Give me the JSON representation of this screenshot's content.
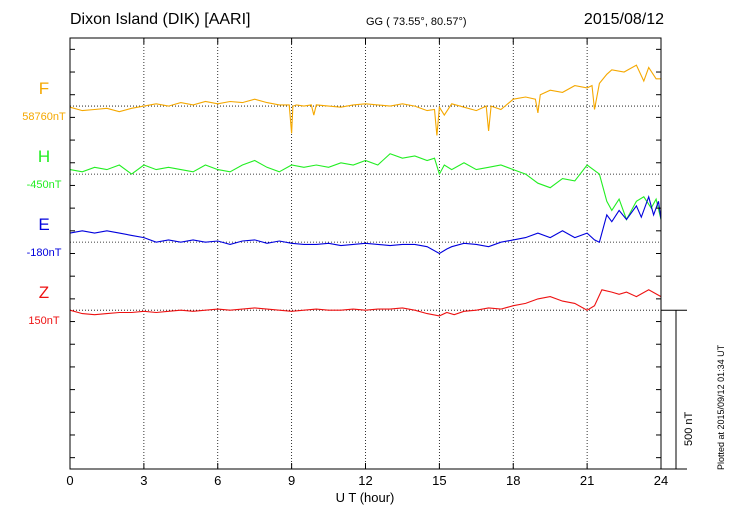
{
  "header": {
    "station": "Dixon Island (DIK)  [AARI]",
    "coords": "GG ( 73.55°,  80.57°)",
    "date": "2015/08/12"
  },
  "footer": {
    "plotted": "Plotted at 2015/09/12 01:34 UT"
  },
  "scale_label": "500 nT",
  "chart_data": {
    "type": "line",
    "title": "Dixon Island (DIK)  [AARI]",
    "xlabel": "U T (hour)",
    "ylabel": "",
    "xlim": [
      0,
      24
    ],
    "xticks": [
      0,
      3,
      6,
      9,
      12,
      15,
      18,
      21,
      24
    ],
    "xtick_labels": [
      "0",
      "3",
      "6",
      "9",
      "12",
      "15",
      "18",
      "21",
      "24"
    ],
    "ylim_nT": [
      -750,
      1150
    ],
    "scale_bar_nT": 500,
    "grid": true,
    "series": [
      {
        "name": "F",
        "baseline_label": "58760nT",
        "color": "#f5a800",
        "offset_nT": 850,
        "x": [
          0,
          0.5,
          1,
          1.5,
          2,
          2.5,
          3,
          3.5,
          4,
          4.5,
          5,
          5.5,
          6,
          6.5,
          7,
          7.5,
          8,
          8.5,
          8.9,
          9.0,
          9.05,
          9.2,
          9.5,
          9.8,
          9.9,
          10.0,
          10.5,
          11,
          11.5,
          12,
          12.5,
          13,
          13.5,
          14,
          14.5,
          14.8,
          14.9,
          15.0,
          15.2,
          15.5,
          16,
          16.5,
          16.9,
          17.0,
          17.1,
          17.5,
          18,
          18.5,
          18.9,
          19.0,
          19.1,
          19.5,
          20,
          20.5,
          21,
          21.2,
          21.3,
          21.5,
          21.8,
          22,
          22.5,
          23,
          23.3,
          23.5,
          23.8,
          24
        ],
        "y": [
          -5,
          -20,
          -15,
          -10,
          -25,
          -10,
          0,
          10,
          0,
          15,
          5,
          20,
          10,
          20,
          15,
          30,
          15,
          5,
          5,
          -120,
          0,
          5,
          0,
          5,
          -40,
          5,
          0,
          -5,
          5,
          10,
          5,
          0,
          10,
          0,
          -20,
          -15,
          -130,
          -5,
          -40,
          10,
          -5,
          -20,
          0,
          -110,
          0,
          -15,
          30,
          40,
          30,
          -30,
          50,
          70,
          60,
          90,
          80,
          90,
          -15,
          100,
          140,
          160,
          150,
          180,
          110,
          170,
          120,
          120
        ]
      },
      {
        "name": "H",
        "baseline_label": "-450nT",
        "color": "#22ee22",
        "offset_nT": 550,
        "x": [
          0,
          0.5,
          1,
          1.5,
          2,
          2.5,
          3,
          3.5,
          4,
          4.5,
          5,
          5.5,
          6,
          6.5,
          7,
          7.5,
          8,
          8.5,
          9,
          9.5,
          10,
          10.5,
          11,
          11.5,
          12,
          12.5,
          13,
          13.5,
          14,
          14.5,
          14.8,
          15,
          15.2,
          15.5,
          16,
          16.5,
          17,
          17.5,
          18,
          18.5,
          19,
          19.5,
          20,
          20.5,
          21,
          21.5,
          21.8,
          22,
          22.3,
          22.6,
          23,
          23.3,
          23.6,
          23.8,
          24
        ],
        "y": [
          20,
          10,
          30,
          20,
          40,
          0,
          40,
          20,
          30,
          20,
          10,
          40,
          20,
          10,
          40,
          60,
          30,
          10,
          40,
          30,
          40,
          30,
          50,
          40,
          60,
          40,
          90,
          70,
          80,
          60,
          70,
          0,
          40,
          20,
          50,
          20,
          30,
          40,
          20,
          0,
          -40,
          -60,
          -20,
          -30,
          40,
          0,
          -120,
          -160,
          -110,
          -200,
          -120,
          -100,
          -150,
          -110,
          -200
        ]
      },
      {
        "name": "E",
        "baseline_label": "-180nT",
        "color": "#0000dd",
        "offset_nT": 250,
        "x": [
          0,
          0.5,
          1,
          1.5,
          2,
          2.5,
          3,
          3.5,
          4,
          4.5,
          5,
          5.5,
          6,
          6.5,
          7,
          7.5,
          8,
          8.5,
          9,
          9.5,
          10,
          10.5,
          11,
          11.5,
          12,
          12.5,
          13,
          13.5,
          14,
          14.5,
          15,
          15.3,
          15.5,
          16,
          16.5,
          17,
          17.5,
          18,
          18.5,
          19,
          19.5,
          20,
          20.5,
          21,
          21.3,
          21.5,
          21.8,
          22,
          22.3,
          22.6,
          23,
          23.2,
          23.5,
          23.7,
          23.9,
          24
        ],
        "y": [
          40,
          50,
          40,
          50,
          40,
          30,
          20,
          0,
          10,
          0,
          10,
          0,
          5,
          -10,
          5,
          10,
          -5,
          5,
          -5,
          -10,
          -10,
          -5,
          -15,
          -10,
          -5,
          -10,
          -15,
          -10,
          -10,
          -20,
          -50,
          -30,
          -20,
          -5,
          -10,
          -20,
          0,
          10,
          20,
          40,
          20,
          50,
          20,
          40,
          10,
          0,
          120,
          90,
          140,
          100,
          160,
          110,
          200,
          120,
          180,
          100
        ]
      },
      {
        "name": "Z",
        "baseline_label": "150nT",
        "color": "#ee1111",
        "offset_nT": -50,
        "x": [
          0,
          0.5,
          1,
          1.5,
          2,
          2.5,
          3,
          3.5,
          4,
          4.5,
          5,
          5.5,
          6,
          6.5,
          7,
          7.5,
          8,
          8.5,
          9,
          9.5,
          10,
          10.5,
          11,
          11.5,
          12,
          12.5,
          13,
          13.5,
          14,
          14.5,
          15,
          15.3,
          15.6,
          16,
          16.5,
          17,
          17.5,
          18,
          18.5,
          19,
          19.5,
          20,
          20.5,
          21,
          21.3,
          21.6,
          22,
          22.3,
          22.6,
          23,
          23.5,
          24
        ],
        "y": [
          0,
          -15,
          -20,
          -15,
          -10,
          -10,
          -5,
          -10,
          -5,
          0,
          -5,
          0,
          5,
          0,
          5,
          10,
          5,
          0,
          -5,
          0,
          5,
          0,
          0,
          5,
          0,
          5,
          5,
          10,
          0,
          -15,
          -25,
          -10,
          -20,
          -5,
          0,
          10,
          5,
          20,
          30,
          50,
          60,
          40,
          30,
          0,
          20,
          90,
          80,
          70,
          80,
          60,
          90,
          60
        ]
      }
    ]
  }
}
